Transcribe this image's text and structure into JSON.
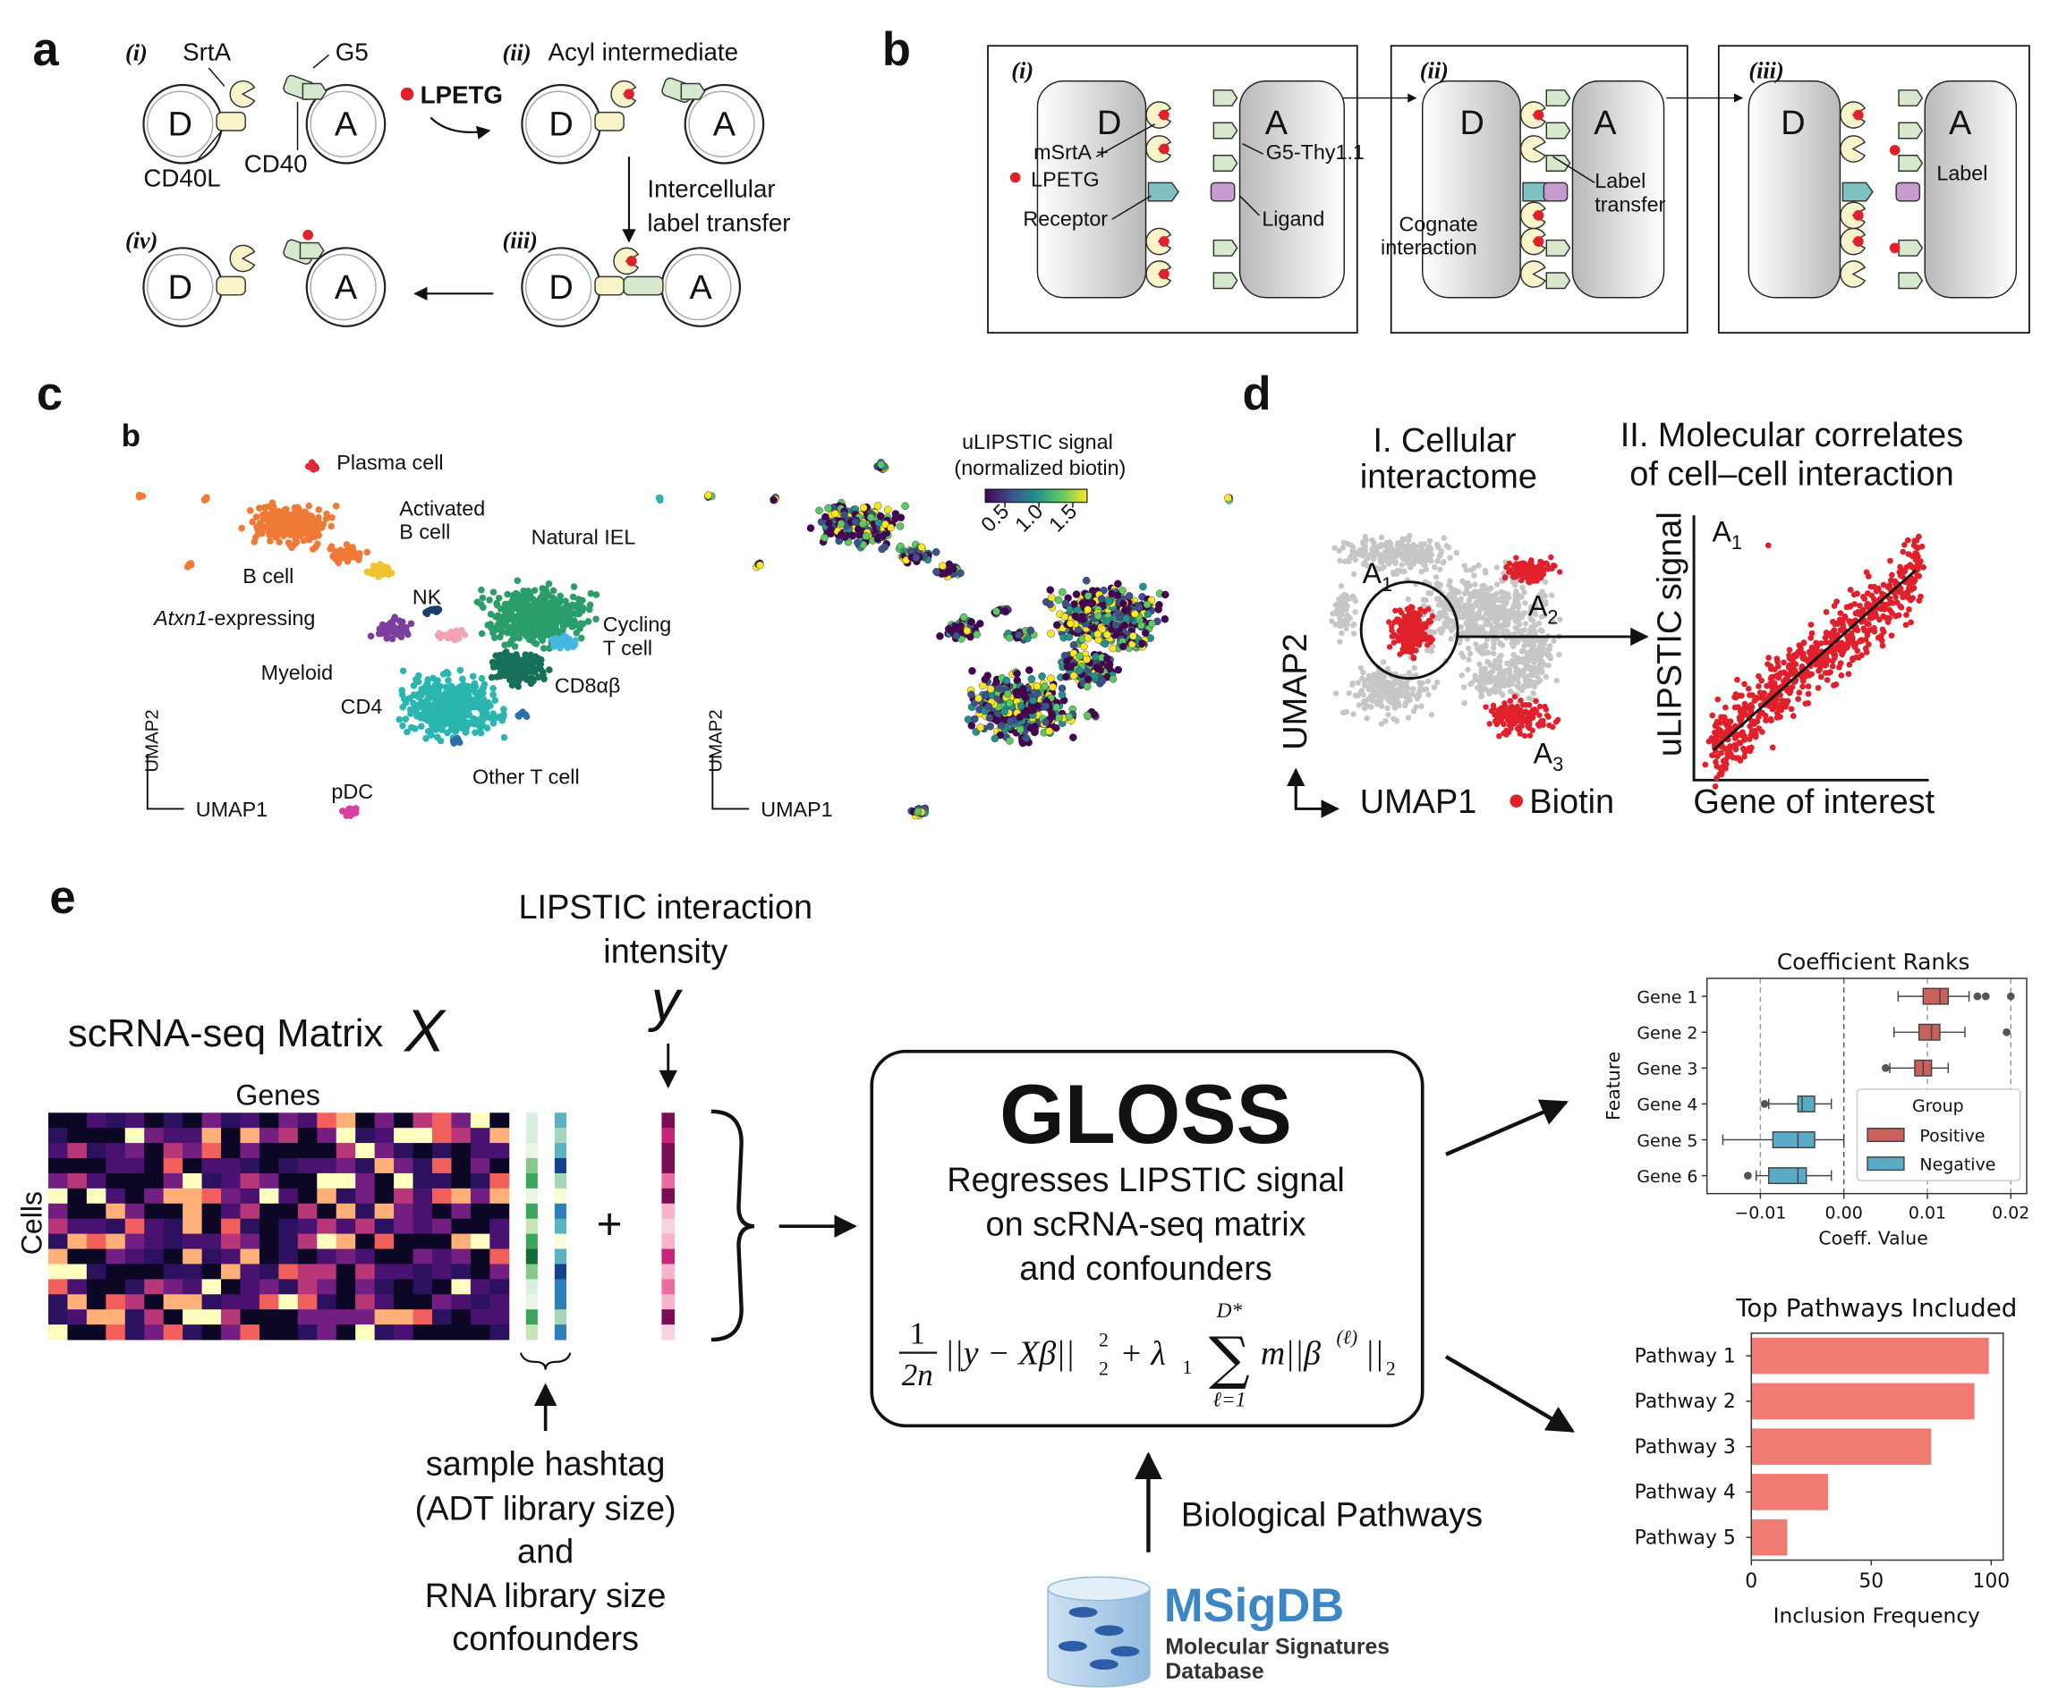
{
  "panel_a": {
    "label": "a",
    "cell_donor": "D",
    "cell_acceptor": "A",
    "step_i": "(i)",
    "step_ii": "(ii)",
    "step_iii": "(iii)",
    "step_iv": "(iv)",
    "srta": "SrtA",
    "g5": "G5",
    "cd40l": "CD40L",
    "cd40": "CD40",
    "substrate": "LPETG",
    "acyl": "Acyl intermediate",
    "transfer": [
      "Intercellular",
      "label transfer"
    ]
  },
  "panel_b": {
    "panel_label": "b",
    "steps": [
      "(i)",
      "(ii)",
      "(iii)"
    ],
    "cell_donor": "D",
    "cell_acceptor": "A",
    "msrta": [
      "mSrtA +",
      "LPETG"
    ],
    "g5": "G5-Thy1.1",
    "receptor": "Receptor",
    "ligand": "Ligand",
    "cognate": [
      "Cognate",
      "interaction"
    ],
    "label_transfer": [
      "Label",
      "transfer"
    ],
    "tag": "Label"
  },
  "panel_c": {
    "label": "c",
    "inset_label": "b",
    "clusters": {
      "plasma": "Plasma cell",
      "activated": [
        "Activated",
        "B cell"
      ],
      "b_cell": "B cell",
      "natural_iel": "Natural IEL",
      "nk": "NK",
      "atxn1": [
        "Atxn1",
        "-expressing"
      ],
      "cycling": [
        "Cycling",
        "T cell"
      ],
      "myeloid": "Myeloid",
      "cd8": "CD8αβ",
      "cd4": "CD4",
      "other_t": "Other T cell",
      "pdc": "pDC"
    },
    "umap_y": "UMAP2",
    "umap_x": "UMAP1",
    "colorbar": {
      "title": [
        "uLIPSTIC signal",
        "(normalized biotin)"
      ],
      "lim": [
        0.21,
        1.71
      ],
      "ticks": [
        0.5,
        {
          "value": 1,
          "label": "1.0"
        },
        1.5
      ]
    }
  },
  "panel_d": {
    "label": "d",
    "left_title": [
      "I. Cellular",
      "interactome"
    ],
    "right_title": [
      "II. Molecular correlates",
      "of cell–cell interaction"
    ],
    "cluster_letter": "A",
    "clusters": [
      "1",
      "2",
      "3"
    ],
    "umap_y": "UMAP2",
    "umap_x": "UMAP1",
    "biotin": "Biotin",
    "y_label": "uLIPSTIC signal",
    "x_label": "Gene of interest"
  },
  "panel_e": {
    "label": "e",
    "target": [
      "LIPSTIC interaction",
      "intensity"
    ],
    "target_symbol": "y",
    "matrix_title": "scRNA-seq Matrix",
    "matrix_symbol": "X",
    "genes": "Genes",
    "cells": "Cells",
    "plus": "+",
    "confounders": [
      "sample hashtag",
      "(ADT library size)",
      "and",
      "RNA library size",
      "confounders"
    ],
    "model": {
      "name": "GLOSS",
      "description": [
        "Regresses LIPSTIC signal",
        "on scRNA-seq matrix",
        "and confounders"
      ],
      "formula": {
        "numerator": "1",
        "denominator": "2n",
        "loss": "||y − Xβ||",
        "loss_sup": "2",
        "loss_sub": "2",
        "plus": "+ λ",
        "lambda_sub": "1",
        "sum": "∑",
        "sum_top": "D*",
        "sum_bottom": "ℓ=1",
        "penalty": "m||β",
        "penalty_sup": "(ℓ)",
        "penalty_end": "||",
        "penalty_sub": "2"
      }
    },
    "pathways_source": "Biological Pathways",
    "msigdb": {
      "name": "MSigDB",
      "subtitle": [
        "Molecular Signatures",
        "Database"
      ]
    },
    "coefficient_chart": {
      "type": "box",
      "title": "Coefficient Ranks",
      "ylabel": "Feature",
      "xlabel": "Coeff. Value",
      "legend_title": "Group",
      "grid": true,
      "categories": [
        "Gene 1",
        "Gene 2",
        "Gene 3",
        "Gene 4",
        "Gene 5",
        "Gene 6"
      ],
      "xlim": [
        -0.0164,
        0.0219
      ],
      "xticks": [
        {
          "value": -0.01,
          "label": "−0.01"
        },
        {
          "value": 0,
          "label": "0.00"
        },
        0.01,
        0.02
      ],
      "series": [
        {
          "name": "Positive",
          "color": "#c9605c",
          "whisker_low": [
            0.0065,
            0.006,
            0.0055,
            null,
            null,
            null
          ],
          "q1": [
            0.0095,
            0.009,
            0.0085,
            null,
            null,
            null
          ],
          "median": [
            0.0115,
            0.0105,
            0.0095,
            null,
            null,
            null
          ],
          "q3": [
            0.0125,
            0.0115,
            0.0105,
            null,
            null,
            null
          ],
          "whisker_high": [
            0.015,
            0.0145,
            0.0125,
            null,
            null,
            null
          ],
          "outliers": [
            [
              0.016,
              0.017,
              0.02
            ],
            [
              0.0195
            ],
            [
              0.005
            ],
            null,
            null,
            null
          ]
        },
        {
          "name": "Negative",
          "color": "#5aabc6",
          "whisker_low": [
            null,
            null,
            null,
            -0.009,
            -0.0145,
            -0.0105
          ],
          "q1": [
            null,
            null,
            null,
            -0.0055,
            -0.0085,
            -0.009
          ],
          "median": [
            null,
            null,
            null,
            -0.005,
            -0.0055,
            -0.0055
          ],
          "q3": [
            null,
            null,
            null,
            -0.0035,
            -0.0035,
            -0.0045
          ],
          "whisker_high": [
            null,
            null,
            null,
            -0.0015,
            0,
            -0.0015
          ],
          "outliers": [
            null,
            null,
            null,
            [
              -0.0095
            ],
            null,
            [
              -0.0115
            ]
          ]
        }
      ]
    },
    "pathway_chart": {
      "type": "bar",
      "title": "Top Pathways Included",
      "xlabel": "Inclusion Frequency",
      "categories": [
        "Pathway 1",
        "Pathway 2",
        "Pathway 3",
        "Pathway 4",
        "Pathway 5"
      ],
      "values": [
        99,
        93,
        75,
        32,
        15
      ],
      "color": "#f07b72",
      "xlim": [
        0,
        105
      ],
      "xticks": [
        0,
        50,
        100
      ]
    }
  }
}
